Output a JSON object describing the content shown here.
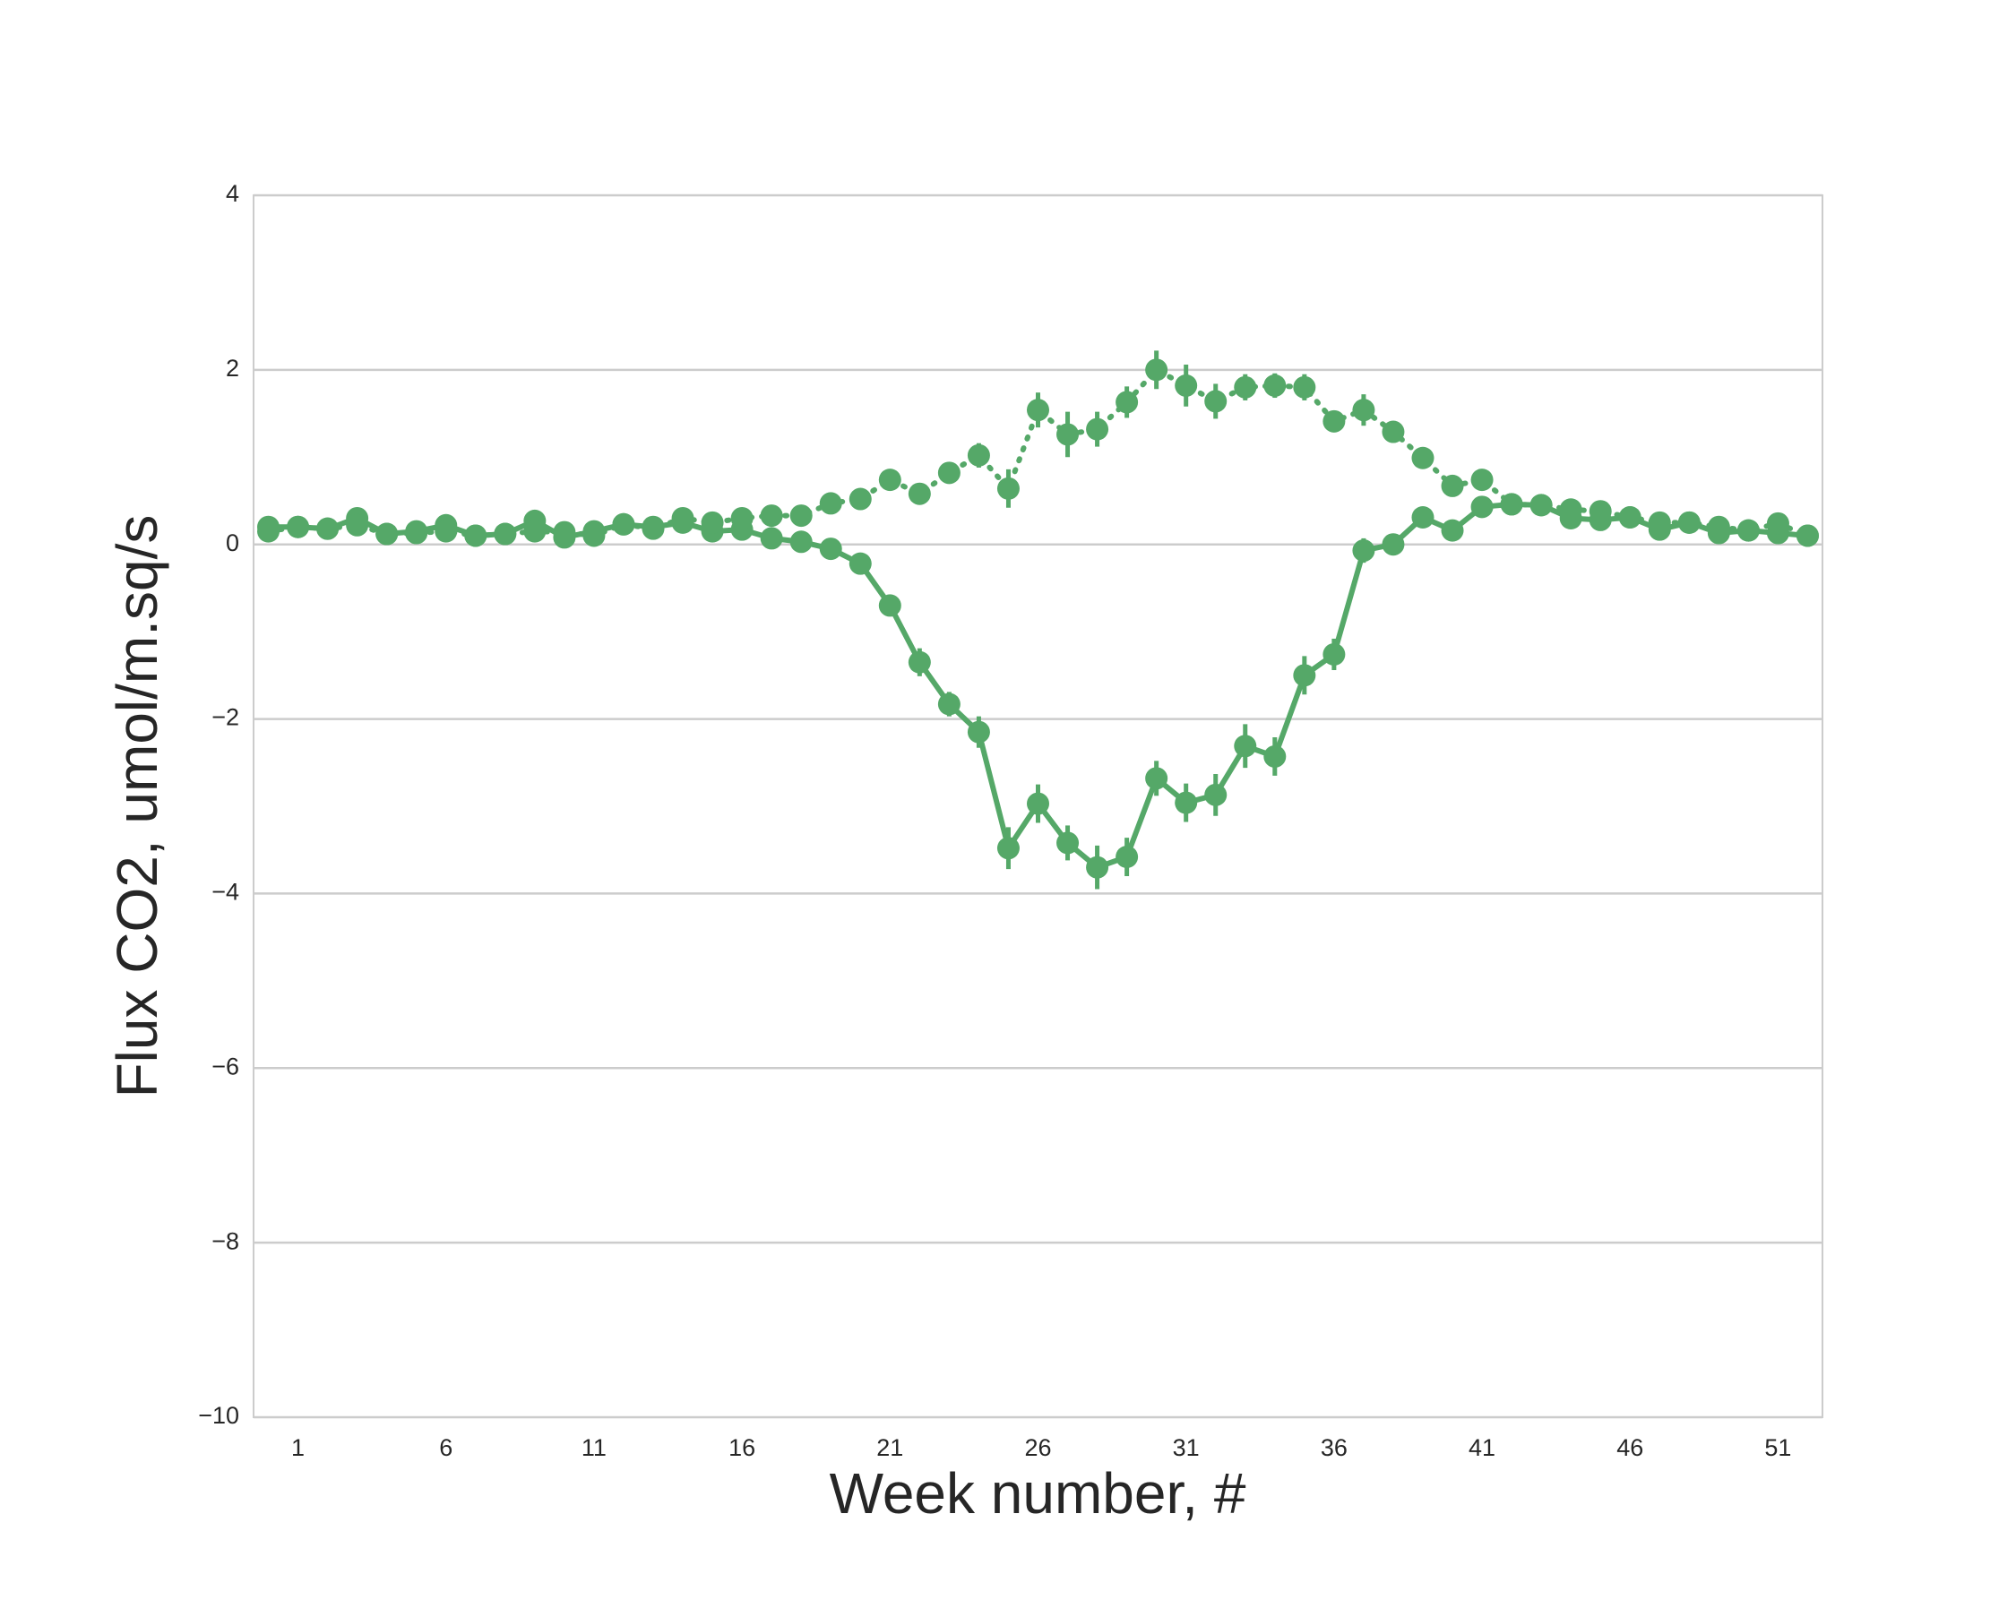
{
  "chart_data": {
    "type": "line",
    "xlabel": "Week number, #",
    "ylabel": "Flux CO2, umol/m.sq/s",
    "x": [
      0,
      1,
      2,
      3,
      4,
      5,
      6,
      7,
      8,
      9,
      10,
      11,
      12,
      13,
      14,
      15,
      16,
      17,
      18,
      19,
      20,
      21,
      22,
      23,
      24,
      25,
      26,
      27,
      28,
      29,
      30,
      31,
      32,
      33,
      34,
      35,
      36,
      37,
      38,
      39,
      40,
      41,
      42,
      43,
      44,
      45,
      46,
      47,
      48,
      49,
      50,
      51,
      52
    ],
    "xlim": [
      -0.5,
      52.5
    ],
    "xticks": [
      1,
      6,
      11,
      16,
      21,
      26,
      31,
      36,
      41,
      46,
      51
    ],
    "ylim": [
      -10,
      4
    ],
    "yticks": [
      {
        "value": -10,
        "label": "−10"
      },
      {
        "value": -8,
        "label": "−8"
      },
      {
        "value": -6,
        "label": "−6"
      },
      {
        "value": -4,
        "label": "−4"
      },
      {
        "value": -2,
        "label": "−2"
      },
      0,
      2,
      4
    ],
    "grid": true,
    "series": [
      {
        "color": "#55a868",
        "linestyle": "solid",
        "values": [
          0.2,
          0.2,
          0.18,
          0.3,
          0.12,
          0.15,
          0.22,
          0.1,
          0.12,
          0.27,
          0.08,
          0.15,
          0.23,
          0.2,
          0.25,
          0.15,
          0.17,
          0.07,
          0.03,
          -0.05,
          -0.22,
          -0.7,
          -1.35,
          -1.83,
          -2.15,
          -3.48,
          -2.97,
          -3.42,
          -3.7,
          -3.58,
          -2.68,
          -2.96,
          -2.87,
          -2.31,
          -2.43,
          -1.5,
          -1.26,
          -0.07,
          0.0,
          0.31,
          0.16,
          0.43,
          0.46,
          0.45,
          0.3,
          0.28,
          0.31,
          0.17,
          0.25,
          0.13,
          0.16,
          0.13,
          0.1
        ],
        "errors": [
          0.04,
          0.03,
          0.03,
          0.05,
          0.04,
          0.04,
          0.05,
          0.03,
          0.03,
          0.05,
          0.04,
          0.04,
          0.04,
          0.04,
          0.05,
          0.04,
          0.04,
          0.03,
          0.04,
          0.05,
          0.06,
          0.12,
          0.16,
          0.14,
          0.18,
          0.24,
          0.22,
          0.2,
          0.25,
          0.22,
          0.2,
          0.22,
          0.24,
          0.25,
          0.22,
          0.22,
          0.18,
          0.14,
          0.12,
          0.06,
          0.05,
          0.05,
          0.04,
          0.04,
          0.05,
          0.05,
          0.04,
          0.05,
          0.04,
          0.05,
          0.04,
          0.05,
          0.04
        ]
      },
      {
        "color": "#55a868",
        "linestyle": "dotted",
        "values": [
          0.15,
          0.2,
          0.18,
          0.22,
          0.12,
          0.13,
          0.15,
          0.1,
          0.12,
          0.15,
          0.14,
          0.1,
          0.23,
          0.18,
          0.3,
          0.25,
          0.3,
          0.33,
          0.33,
          0.47,
          0.52,
          0.74,
          0.58,
          0.82,
          1.02,
          0.64,
          1.54,
          1.26,
          1.32,
          1.63,
          2.0,
          1.82,
          1.64,
          1.8,
          1.82,
          1.8,
          1.41,
          1.54,
          1.29,
          0.99,
          0.67,
          0.74,
          0.46,
          0.45,
          0.4,
          0.38,
          0.31,
          0.25,
          0.25,
          0.2,
          0.16,
          0.24,
          0.1
        ],
        "errors": [
          0.04,
          0.03,
          0.03,
          0.04,
          0.03,
          0.04,
          0.04,
          0.03,
          0.03,
          0.04,
          0.04,
          0.04,
          0.04,
          0.04,
          0.05,
          0.04,
          0.04,
          0.04,
          0.04,
          0.05,
          0.06,
          0.08,
          0.12,
          0.12,
          0.14,
          0.22,
          0.2,
          0.26,
          0.2,
          0.18,
          0.22,
          0.24,
          0.2,
          0.15,
          0.14,
          0.15,
          0.12,
          0.18,
          0.1,
          0.06,
          0.06,
          0.07,
          0.05,
          0.05,
          0.06,
          0.06,
          0.05,
          0.08,
          0.05,
          0.08,
          0.05,
          0.06,
          0.04
        ]
      }
    ]
  }
}
